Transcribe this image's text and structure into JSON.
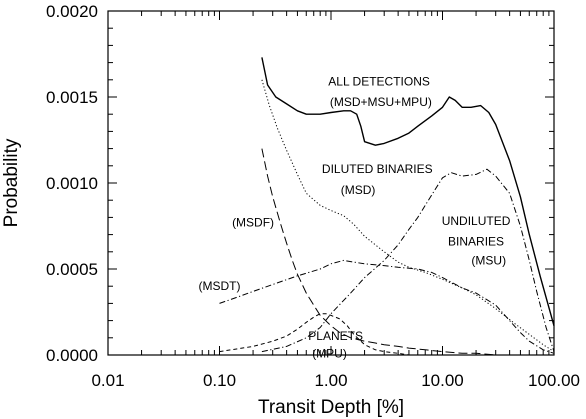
{
  "chart_data": {
    "type": "line",
    "xlabel": "Transit Depth [%]",
    "ylabel": "Probability",
    "xscale": "log",
    "xlim": [
      0.01,
      100
    ],
    "ylim": [
      0,
      0.002
    ],
    "xticks": [
      {
        "value": 0.01,
        "label": "0.01"
      },
      {
        "value": 0.1,
        "label": "0.10"
      },
      {
        "value": 1,
        "label": "1.00"
      },
      {
        "value": 10,
        "label": "10.00"
      },
      {
        "value": 100,
        "label": "100.00"
      }
    ],
    "yticks": [
      {
        "value": 0,
        "label": "0.0000"
      },
      {
        "value": 0.0005,
        "label": "0.0005"
      },
      {
        "value": 0.001,
        "label": "0.0010"
      },
      {
        "value": 0.0015,
        "label": "0.0015"
      },
      {
        "value": 0.002,
        "label": "0.0020"
      }
    ],
    "series": [
      {
        "name": "ALL DETECTIONS",
        "style": "solid",
        "x": [
          0.24,
          0.27,
          0.32,
          0.4,
          0.5,
          0.6,
          0.8,
          1.0,
          1.3,
          1.5,
          1.7,
          1.85,
          2.0,
          2.5,
          3.0,
          4.0,
          5.0,
          6.0,
          8.0,
          10.0,
          11.5,
          13.0,
          15.0,
          18.0,
          22.0,
          26.0,
          30.0,
          40.0,
          50.0,
          60.0,
          75.0,
          100.0
        ],
        "y": [
          0.00173,
          0.00157,
          0.0015,
          0.00146,
          0.00142,
          0.0014,
          0.0014,
          0.00141,
          0.00142,
          0.00142,
          0.0014,
          0.00133,
          0.00124,
          0.00122,
          0.00123,
          0.00126,
          0.00129,
          0.00133,
          0.00139,
          0.00144,
          0.0015,
          0.00148,
          0.00144,
          0.00144,
          0.00145,
          0.00141,
          0.00134,
          0.00113,
          0.00092,
          0.0007,
          0.00046,
          0.00017
        ]
      },
      {
        "name": "DILUTED BINARIES",
        "style": "dotted",
        "x": [
          0.24,
          0.28,
          0.33,
          0.4,
          0.5,
          0.6,
          0.8,
          1.0,
          1.3,
          1.6,
          2.0,
          2.5,
          3.0,
          4.0,
          5.0,
          7.0,
          10.0,
          15.0,
          20.0,
          30.0,
          45.0,
          60.0,
          80.0,
          100.0
        ],
        "y": [
          0.0016,
          0.00145,
          0.00132,
          0.00119,
          0.00105,
          0.00094,
          0.00087,
          0.00084,
          0.00081,
          0.00076,
          0.00069,
          0.00064,
          0.0006,
          0.00054,
          0.00051,
          0.00048,
          0.00044,
          0.00039,
          0.00035,
          0.00027,
          0.00018,
          0.00012,
          6e-05,
          2e-05
        ]
      },
      {
        "name": "UNDILUTED BINARIES",
        "style": "dashdot",
        "x": [
          0.24,
          0.4,
          0.6,
          0.8,
          1.0,
          1.5,
          2.0,
          3.0,
          4.0,
          5.0,
          6.0,
          7.0,
          8.0,
          10.0,
          12.0,
          15.0,
          20.0,
          25.0,
          30.0,
          40.0,
          50.0,
          60.0,
          70.0,
          85.0,
          100.0
        ],
        "y": [
          2e-05,
          5e-05,
          0.0001,
          0.00016,
          0.00024,
          0.00036,
          0.00045,
          0.00055,
          0.00064,
          0.00073,
          0.0008,
          0.00087,
          0.00093,
          0.00103,
          0.00106,
          0.00104,
          0.00105,
          0.00108,
          0.00104,
          0.00094,
          0.00075,
          0.00055,
          0.00037,
          0.00016,
          2e-05
        ]
      },
      {
        "name": "PLANETS",
        "style": "short-dash",
        "x": [
          0.1,
          0.2,
          0.3,
          0.4,
          0.5,
          0.6,
          0.7,
          0.8,
          0.9,
          1.0,
          1.2,
          1.4,
          1.6,
          2.0,
          2.5,
          3.0,
          4.0,
          5.0,
          7.0,
          10.0
        ],
        "y": [
          2e-05,
          5e-05,
          8e-05,
          0.00011,
          0.00015,
          0.00019,
          0.00022,
          0.00024,
          0.00024,
          0.00023,
          0.00021,
          0.00017,
          0.00012,
          6e-05,
          3e-05,
          2e-05,
          1e-05,
          0.0,
          0.0,
          0.0
        ]
      },
      {
        "name": "MSDF",
        "style": "long-dash",
        "x": [
          0.24,
          0.27,
          0.3,
          0.35,
          0.4,
          0.45,
          0.5,
          0.6,
          0.7,
          0.8,
          1.0,
          1.2,
          1.5,
          2.0,
          2.5,
          3.0,
          4.0,
          5.0,
          7.0,
          10.0,
          15.0,
          20.0,
          30.0,
          50.0,
          100.0
        ],
        "y": [
          0.0012,
          0.00104,
          0.00092,
          0.00077,
          0.00065,
          0.00055,
          0.00047,
          0.00036,
          0.00029,
          0.00023,
          0.00017,
          0.00013,
          0.0001,
          8e-05,
          7e-05,
          6e-05,
          5e-05,
          4e-05,
          3e-05,
          2e-05,
          1e-05,
          1e-05,
          0.0,
          0.0,
          0.0
        ]
      },
      {
        "name": "MSDT",
        "style": "dashdot",
        "x": [
          0.1,
          0.15,
          0.2,
          0.3,
          0.5,
          0.8,
          1.0,
          1.3,
          1.6,
          2.0,
          3.0,
          4.0,
          6.0,
          8.0,
          10.0,
          15.0,
          20.0,
          30.0,
          40.0,
          50.0,
          60.0,
          80.0,
          100.0
        ],
        "y": [
          0.0003,
          0.00034,
          0.00037,
          0.00041,
          0.00046,
          0.0005,
          0.00053,
          0.00055,
          0.00054,
          0.00053,
          0.00052,
          0.00051,
          0.0005,
          0.00048,
          0.00045,
          0.00039,
          0.00036,
          0.00029,
          0.0002,
          0.00013,
          8e-05,
          3e-05,
          1e-05
        ]
      }
    ],
    "annotations": [
      {
        "text": "ALL DETECTIONS",
        "x": 2.7,
        "y": 0.00159
      },
      {
        "text": "(MSD+MSU+MPU)",
        "x": 2.8,
        "y": 0.00147
      },
      {
        "text": "DILUTED BINARIES",
        "x": 2.6,
        "y": 0.00108
      },
      {
        "text": "(MSD)",
        "x": 1.75,
        "y": 0.00096
      },
      {
        "text": "(MSDF)",
        "x": 0.2,
        "y": 0.00077
      },
      {
        "text": "UNDILUTED",
        "x": 20,
        "y": 0.00078
      },
      {
        "text": "BINARIES",
        "x": 20,
        "y": 0.00066
      },
      {
        "text": "(MSU)",
        "x": 26,
        "y": 0.00055
      },
      {
        "text": "(MSDT)",
        "x": 0.1,
        "y": 0.0004
      },
      {
        "text": "PLANETS",
        "x": 1.1,
        "y": 0.00011
      },
      {
        "text": "(MPU)",
        "x": 0.97,
        "y": 1e-05
      }
    ]
  }
}
